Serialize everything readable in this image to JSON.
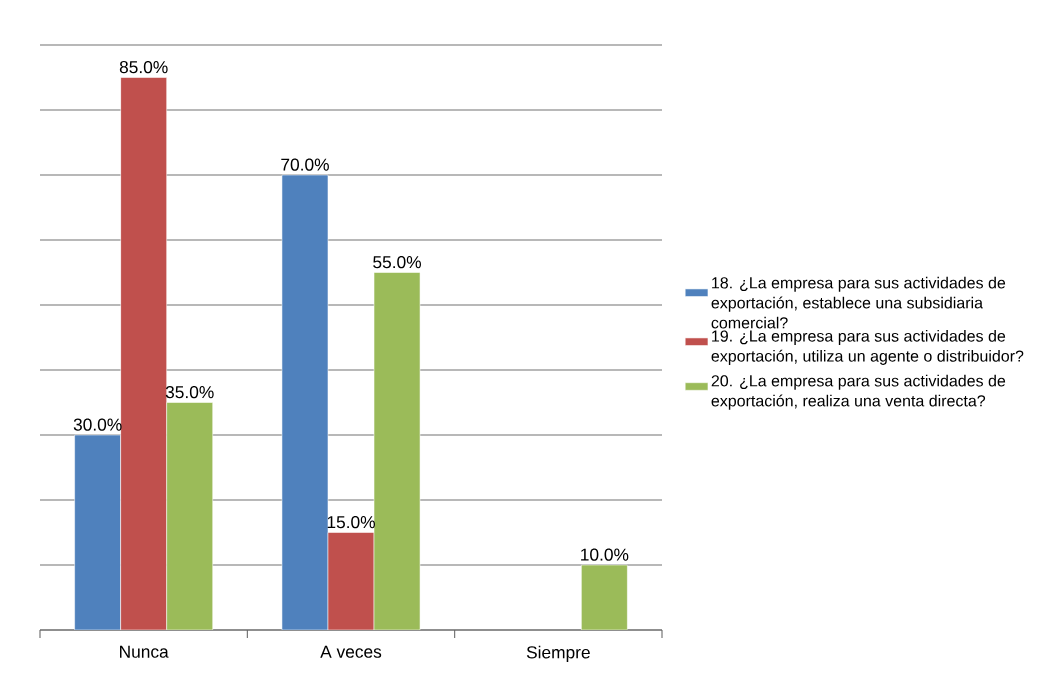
{
  "chart_data": {
    "type": "bar",
    "categories": [
      "Nunca",
      "A veces",
      "Siempre"
    ],
    "series": [
      {
        "name": "18.  ¿La empresa para sus actividades de exportación, establece una subsidiaria comercial?",
        "color": "#4f81bd",
        "values": [
          30,
          70,
          null
        ],
        "value_labels": [
          "30.0%",
          "70.0%",
          null
        ]
      },
      {
        "name": "19.  ¿La empresa para sus actividades de exportación, utiliza un agente o distribuidor?",
        "color": "#c0504d",
        "values": [
          85,
          15,
          null
        ],
        "value_labels": [
          "85.0%",
          "15.0%",
          null
        ]
      },
      {
        "name": "20.  ¿La empresa para sus actividades de exportación, realiza una venta directa?",
        "color": "#9bbb59",
        "values": [
          35,
          55,
          10
        ],
        "value_labels": [
          "35.0%",
          "55.0%",
          "10.0%"
        ]
      }
    ],
    "ylim": [
      0,
      90
    ],
    "yticks": [
      {
        "value": 0,
        "label": null
      },
      {
        "value": 10,
        "label": null
      },
      {
        "value": 20,
        "label": null
      },
      {
        "value": 30,
        "label": null
      },
      {
        "value": 40,
        "label": null
      },
      {
        "value": 50,
        "label": null
      },
      {
        "value": 60,
        "label": null
      },
      {
        "value": 70,
        "label": null
      },
      {
        "value": 80,
        "label": null
      },
      {
        "value": 90,
        "label": null
      }
    ],
    "grid": "y",
    "legend": "right",
    "tick_labels": "x"
  }
}
